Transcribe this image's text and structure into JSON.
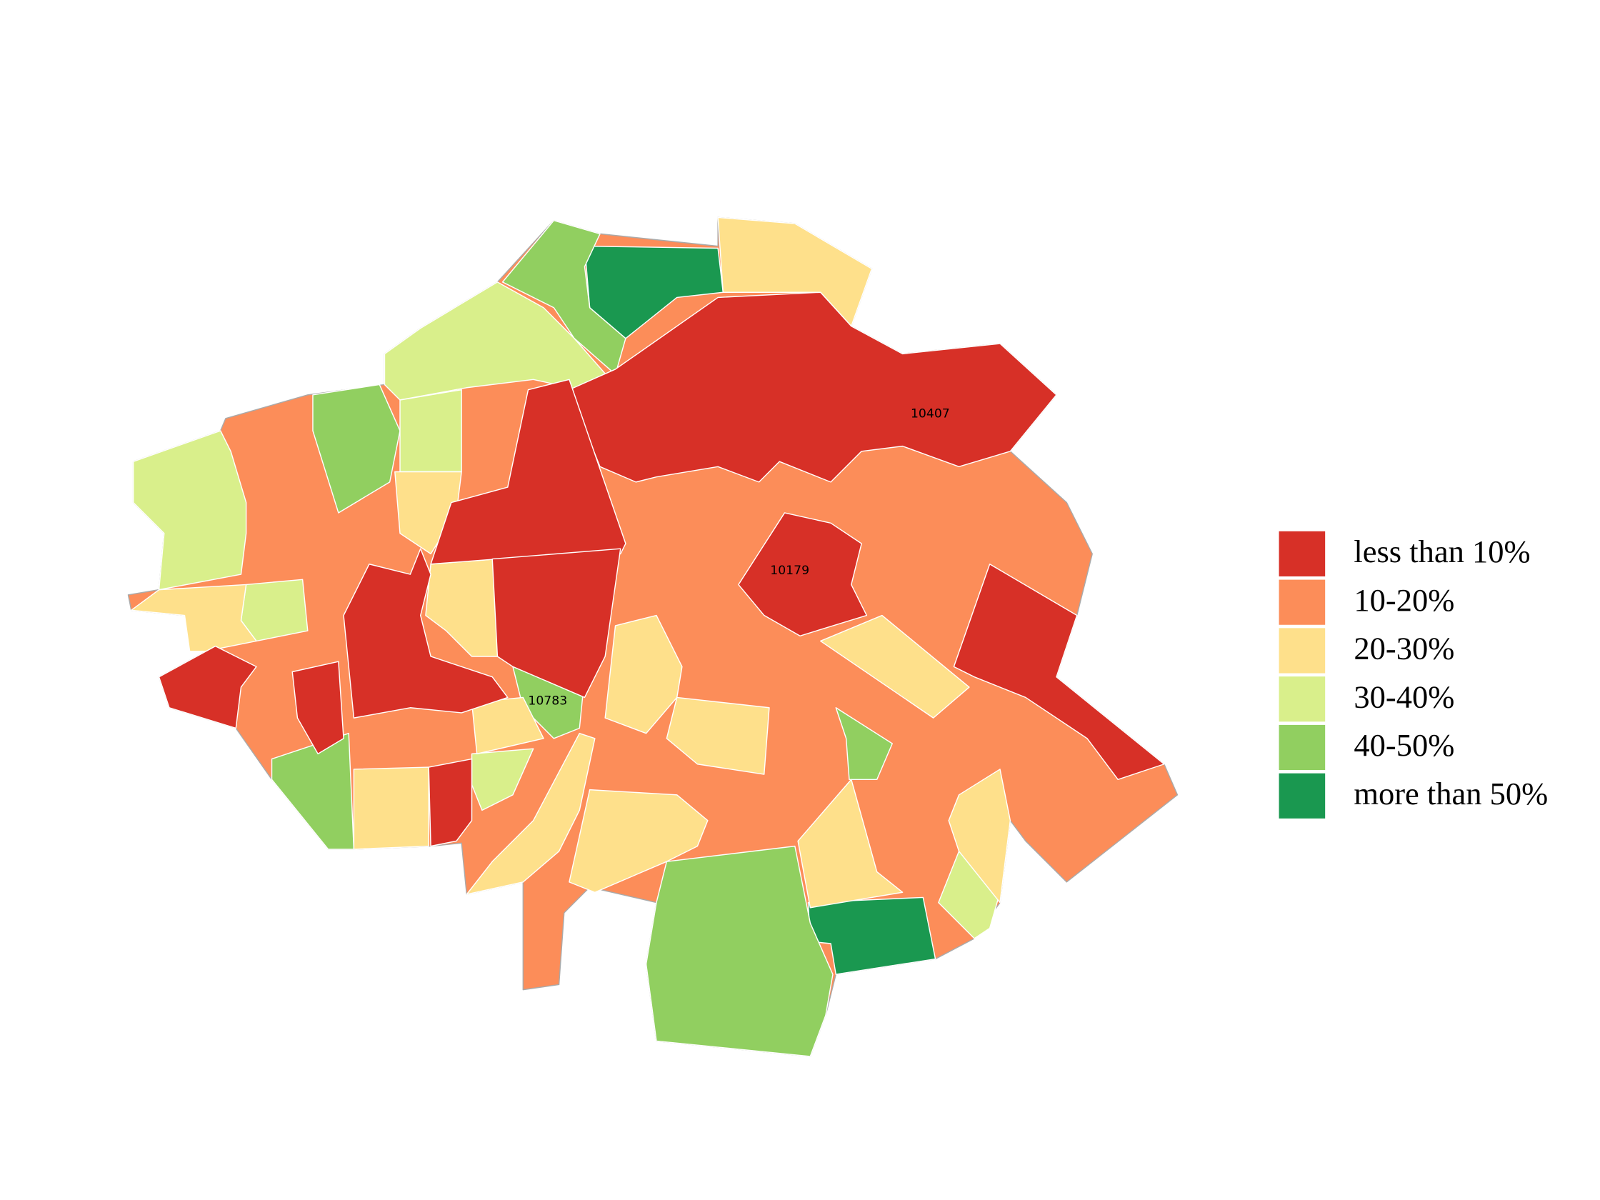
{
  "map": {
    "labels": [
      "10407",
      "10179",
      "10783"
    ],
    "legend": [
      {
        "label": "less than 10%",
        "color": "#d73027"
      },
      {
        "label": "10-20%",
        "color": "#fc8d59"
      },
      {
        "label": "20-30%",
        "color": "#fee08b"
      },
      {
        "label": "30-40%",
        "color": "#d9ef8b"
      },
      {
        "label": "40-50%",
        "color": "#91cf60"
      },
      {
        "label": "more than 50%",
        "color": "#1a9850"
      }
    ]
  }
}
